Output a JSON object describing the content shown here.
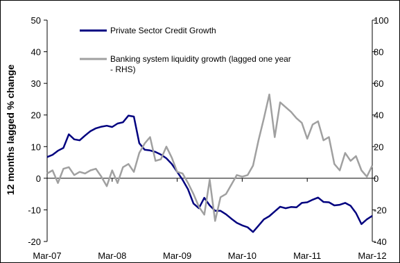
{
  "chart_data": {
    "type": "line",
    "title": "",
    "xlabel": "",
    "ylabel": "12 months lagged % change",
    "ylim": [
      -20,
      50
    ],
    "y2lim": [
      -40,
      100
    ],
    "y_ticks": [
      "50",
      "40",
      "30",
      "20",
      "10",
      "0",
      "-10",
      "-20"
    ],
    "y2_ticks": [
      "100",
      "80",
      "60",
      "40",
      "20",
      "0",
      "-20",
      "-40"
    ],
    "x_ticks": [
      "Mar-07",
      "Mar-08",
      "Mar-09",
      "Mar-10",
      "Mar-11",
      "Mar-12"
    ],
    "x_start": "Mar-07",
    "x_end": "Mar-12",
    "grid": false,
    "legend_position": "top-left",
    "series": [
      {
        "name": "Private Sector Credit Growth",
        "axis": "left",
        "color": "#00007F",
        "x": [
          "Mar-07",
          "Apr-07",
          "May-07",
          "Jun-07",
          "Jul-07",
          "Aug-07",
          "Sep-07",
          "Oct-07",
          "Nov-07",
          "Dec-07",
          "Jan-08",
          "Feb-08",
          "Mar-08",
          "Apr-08",
          "May-08",
          "Jun-08",
          "Jul-08",
          "Aug-08",
          "Sep-08",
          "Oct-08",
          "Nov-08",
          "Dec-08",
          "Jan-09",
          "Feb-09",
          "Mar-09",
          "Apr-09",
          "May-09",
          "Jun-09",
          "Jul-09",
          "Aug-09",
          "Sep-09",
          "Oct-09",
          "Nov-09",
          "Dec-09",
          "Jan-10",
          "Feb-10",
          "Mar-10",
          "Apr-10",
          "May-10",
          "Jun-10",
          "Jul-10",
          "Aug-10",
          "Sep-10",
          "Oct-10",
          "Nov-10",
          "Dec-10",
          "Jan-11",
          "Feb-11",
          "Mar-11",
          "Apr-11",
          "May-11",
          "Jun-11",
          "Jul-11",
          "Aug-11",
          "Sep-11",
          "Oct-11",
          "Nov-11",
          "Dec-11",
          "Jan-12",
          "Feb-12",
          "Mar-12"
        ],
        "values": [
          6.7,
          7.4,
          8.7,
          9.6,
          13.9,
          12.3,
          12.0,
          13.5,
          14.9,
          15.8,
          16.3,
          16.6,
          16.2,
          17.3,
          17.7,
          19.8,
          19.5,
          11.1,
          9.0,
          8.8,
          8.3,
          7.5,
          6.3,
          4.5,
          2.0,
          -0.5,
          -3.5,
          -8.0,
          -9.5,
          -6.2,
          -8.6,
          -10.3,
          -10.3,
          -11.4,
          -12.8,
          -14.1,
          -14.9,
          -15.5,
          -17.0,
          -15.0,
          -13.0,
          -12.0,
          -10.5,
          -9.0,
          -9.5,
          -9.1,
          -9.2,
          -7.8,
          -7.6,
          -6.8,
          -6.1,
          -7.5,
          -7.6,
          -8.6,
          -8.4,
          -7.8,
          -8.7,
          -11.0,
          -14.5,
          -13.0,
          -11.9
        ]
      },
      {
        "name": "Banking system liquidity growth (lagged one year - RHS)",
        "axis": "right",
        "color": "#A0A0A0",
        "x": [
          "Mar-07",
          "Apr-07",
          "May-07",
          "Jun-07",
          "Jul-07",
          "Aug-07",
          "Sep-07",
          "Oct-07",
          "Nov-07",
          "Dec-07",
          "Jan-08",
          "Feb-08",
          "Mar-08",
          "Apr-08",
          "May-08",
          "Jun-08",
          "Jul-08",
          "Aug-08",
          "Sep-08",
          "Oct-08",
          "Nov-08",
          "Dec-08",
          "Jan-09",
          "Feb-09",
          "Mar-09",
          "Apr-09",
          "May-09",
          "Jun-09",
          "Jul-09",
          "Aug-09",
          "Sep-09",
          "Oct-09",
          "Nov-09",
          "Dec-09",
          "Jan-10",
          "Feb-10",
          "Mar-10",
          "Apr-10",
          "May-10",
          "Jun-10",
          "Jul-10",
          "Aug-10",
          "Sep-10",
          "Oct-10",
          "Nov-10",
          "Dec-10",
          "Jan-11",
          "Feb-11",
          "Mar-11",
          "Apr-11",
          "May-11",
          "Jun-11",
          "Jul-11",
          "Aug-11",
          "Sep-11",
          "Oct-11",
          "Nov-11",
          "Dec-11",
          "Jan-12",
          "Feb-12",
          "Mar-12"
        ],
        "values": [
          3,
          5,
          -3,
          6,
          7,
          2,
          4,
          3,
          5,
          6,
          1,
          -5,
          5,
          -3,
          7,
          9,
          4,
          16,
          22,
          26,
          11,
          12,
          20,
          13,
          4,
          3,
          -3,
          -10,
          -18,
          -23,
          -1,
          -27,
          -12,
          -10,
          -4,
          2,
          1,
          2,
          8,
          24,
          38,
          53,
          26,
          48,
          45,
          42,
          38,
          35,
          25,
          34,
          36,
          24,
          26,
          9,
          5,
          16,
          11,
          14,
          5,
          1,
          8
        ]
      }
    ]
  }
}
